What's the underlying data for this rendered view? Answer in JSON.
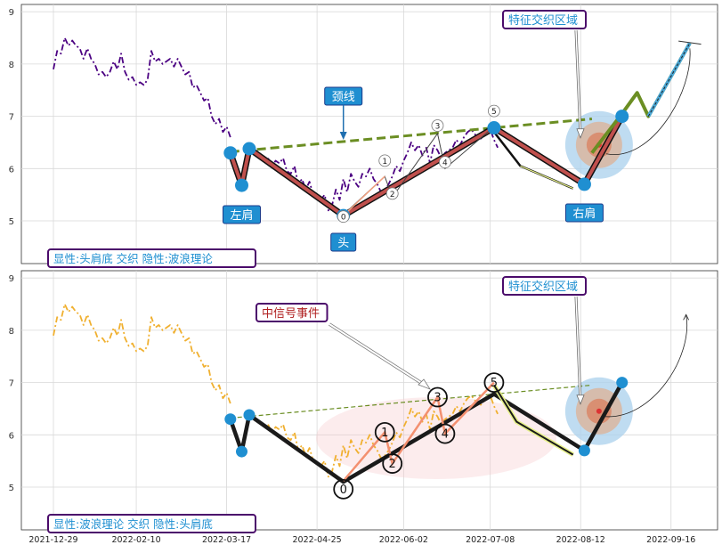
{
  "chart_data": [
    {
      "type": "line",
      "panel": "top",
      "yticks": [
        5,
        6,
        7,
        8,
        9
      ],
      "ylim": [
        4.2,
        9.15
      ],
      "series": [
        {
          "color": "#4b0082",
          "style": "dash-dot",
          "values": [
            [
              0,
              7.9
            ],
            [
              1,
              8.25
            ],
            [
              2,
              8.2
            ],
            [
              3,
              8.5
            ],
            [
              4,
              8.35
            ],
            [
              5,
              8.45
            ],
            [
              6,
              8.35
            ],
            [
              7,
              8.3
            ],
            [
              8,
              8.1
            ],
            [
              9,
              8.3
            ],
            [
              10,
              8.1
            ],
            [
              11,
              8.0
            ],
            [
              12,
              7.8
            ],
            [
              13,
              7.85
            ],
            [
              14,
              7.75
            ],
            [
              15,
              7.85
            ],
            [
              16,
              8.05
            ],
            [
              17,
              7.9
            ],
            [
              18,
              8.2
            ],
            [
              19,
              7.85
            ],
            [
              20,
              7.7
            ],
            [
              21,
              7.75
            ],
            [
              22,
              7.6
            ],
            [
              23,
              7.65
            ],
            [
              24,
              7.6
            ],
            [
              25,
              7.7
            ],
            [
              26,
              8.25
            ],
            [
              27,
              8.05
            ],
            [
              28,
              8.1
            ],
            [
              29,
              8.0
            ],
            [
              30,
              8.05
            ],
            [
              31,
              8.1
            ],
            [
              32,
              7.95
            ],
            [
              33,
              8.1
            ],
            [
              34,
              7.95
            ],
            [
              35,
              7.8
            ],
            [
              36,
              7.85
            ],
            [
              37,
              7.55
            ],
            [
              38,
              7.6
            ],
            [
              39,
              7.45
            ],
            [
              40,
              7.3
            ],
            [
              41,
              7.35
            ],
            [
              42,
              7.0
            ],
            [
              43,
              6.85
            ],
            [
              44,
              6.95
            ],
            [
              45,
              6.7
            ],
            [
              46,
              6.8
            ],
            [
              47,
              6.6
            ]
          ]
        },
        {
          "color": "#4b0082",
          "style": "dash-dot",
          "values": [
            [
              57,
              6.2
            ],
            [
              58,
              6.05
            ],
            [
              59,
              6.15
            ],
            [
              60,
              6.1
            ],
            [
              61,
              6.2
            ],
            [
              62,
              5.95
            ],
            [
              63,
              5.9
            ],
            [
              64,
              6.05
            ],
            [
              65,
              5.7
            ],
            [
              66,
              5.8
            ],
            [
              67,
              5.6
            ],
            [
              68,
              5.75
            ],
            [
              69,
              5.5
            ],
            [
              70,
              5.45
            ],
            [
              71,
              5.4
            ],
            [
              72,
              5.5
            ],
            [
              73,
              5.2
            ],
            [
              74,
              5.3
            ],
            [
              75,
              5.6
            ],
            [
              76,
              5.4
            ],
            [
              77,
              5.8
            ],
            [
              78,
              5.55
            ],
            [
              79,
              5.9
            ],
            [
              80,
              5.75
            ],
            [
              81,
              5.65
            ],
            [
              82,
              5.9
            ],
            [
              83,
              5.85
            ],
            [
              84,
              6.0
            ],
            [
              85,
              5.8
            ],
            [
              86,
              5.7
            ],
            [
              87,
              5.55
            ],
            [
              88,
              5.6
            ],
            [
              89,
              5.7
            ],
            [
              90,
              5.85
            ],
            [
              91,
              6.05
            ],
            [
              92,
              5.95
            ],
            [
              93,
              6.15
            ],
            [
              94,
              6.3
            ],
            [
              95,
              6.5
            ],
            [
              96,
              6.35
            ],
            [
              97,
              6.45
            ],
            [
              98,
              6.25
            ],
            [
              99,
              6.4
            ],
            [
              100,
              6.1
            ],
            [
              101,
              6.45
            ],
            [
              102,
              6.35
            ],
            [
              103,
              6.2
            ],
            [
              104,
              6.3
            ],
            [
              105,
              6.35
            ],
            [
              106,
              6.4
            ],
            [
              107,
              6.55
            ],
            [
              108,
              6.45
            ],
            [
              109,
              6.6
            ],
            [
              110,
              6.7
            ],
            [
              111,
              6.75
            ],
            [
              112,
              6.65
            ],
            [
              113,
              6.55
            ],
            [
              114,
              6.6
            ],
            [
              115,
              6.75
            ],
            [
              116,
              6.75
            ],
            [
              117,
              6.55
            ],
            [
              118,
              6.4
            ]
          ]
        }
      ],
      "head_shoulders_line": [
        [
          47,
          6.3
        ],
        [
          50,
          5.68
        ],
        [
          52,
          6.38
        ],
        [
          77,
          5.1
        ],
        [
          117,
          6.78
        ],
        [
          141,
          5.7
        ]
      ],
      "shoulder_head_points": [
        [
          47,
          6.3
        ],
        [
          50,
          5.68
        ],
        [
          52,
          6.38
        ],
        [
          77,
          5.1
        ],
        [
          117,
          6.78
        ],
        [
          141,
          5.7
        ],
        [
          151,
          7.0
        ]
      ],
      "wave_line": [
        [
          77,
          5.12
        ],
        [
          88,
          5.85
        ],
        [
          90,
          5.45
        ],
        [
          102,
          6.67
        ],
        [
          104,
          6.0
        ],
        [
          117,
          6.8
        ]
      ],
      "wave_labels": [
        [
          77,
          4.98,
          "0"
        ],
        [
          88,
          6.05,
          "1"
        ],
        [
          90,
          5.42,
          "2"
        ],
        [
          102,
          6.72,
          "3"
        ],
        [
          104,
          6.02,
          "4"
        ],
        [
          117,
          7.0,
          "5"
        ]
      ],
      "neckline": [
        [
          47,
          6.32
        ],
        [
          143,
          6.95
        ]
      ],
      "target_path": [
        [
          143,
          6.3
        ],
        [
          151,
          7.05
        ],
        [
          155,
          7.45
        ],
        [
          158,
          7.0
        ],
        [
          169,
          8.4
        ]
      ],
      "feature_zone_center": [
        143,
        6.35
      ],
      "labels": {
        "left_shoulder": "左肩",
        "head": "头",
        "right_shoulder": "右肩",
        "neckline": "颈线",
        "feature_zone": "特征交织区域",
        "caption": "显性:头肩底 交织 隐性:波浪理论"
      }
    },
    {
      "type": "line",
      "panel": "bottom",
      "yticks": [
        5,
        6,
        7,
        8,
        9
      ],
      "ylim": [
        4.2,
        9.15
      ],
      "xticks": [
        "2021-12-29",
        "2022-02-10",
        "2022-03-17",
        "2022-04-25",
        "2022-06-02",
        "2022-07-08",
        "2022-08-12",
        "2022-09-16"
      ],
      "xtick_positions": [
        0,
        22,
        46,
        70,
        93,
        116,
        140,
        164
      ],
      "series": [
        {
          "color": "#f0b030",
          "style": "dash-dot",
          "values": [
            [
              0,
              7.9
            ],
            [
              1,
              8.25
            ],
            [
              2,
              8.2
            ],
            [
              3,
              8.5
            ],
            [
              4,
              8.35
            ],
            [
              5,
              8.45
            ],
            [
              6,
              8.35
            ],
            [
              7,
              8.3
            ],
            [
              8,
              8.1
            ],
            [
              9,
              8.3
            ],
            [
              10,
              8.1
            ],
            [
              11,
              8.0
            ],
            [
              12,
              7.8
            ],
            [
              13,
              7.85
            ],
            [
              14,
              7.75
            ],
            [
              15,
              7.85
            ],
            [
              16,
              8.05
            ],
            [
              17,
              7.9
            ],
            [
              18,
              8.2
            ],
            [
              19,
              7.85
            ],
            [
              20,
              7.7
            ],
            [
              21,
              7.75
            ],
            [
              22,
              7.6
            ],
            [
              23,
              7.65
            ],
            [
              24,
              7.6
            ],
            [
              25,
              7.7
            ],
            [
              26,
              8.25
            ],
            [
              27,
              8.05
            ],
            [
              28,
              8.1
            ],
            [
              29,
              8.0
            ],
            [
              30,
              8.05
            ],
            [
              31,
              8.1
            ],
            [
              32,
              7.95
            ],
            [
              33,
              8.1
            ],
            [
              34,
              7.95
            ],
            [
              35,
              7.8
            ],
            [
              36,
              7.85
            ],
            [
              37,
              7.55
            ],
            [
              38,
              7.6
            ],
            [
              39,
              7.45
            ],
            [
              40,
              7.3
            ],
            [
              41,
              7.35
            ],
            [
              42,
              7.0
            ],
            [
              43,
              6.85
            ],
            [
              44,
              6.95
            ],
            [
              45,
              6.7
            ],
            [
              46,
              6.8
            ],
            [
              47,
              6.6
            ]
          ]
        },
        {
          "color": "#f0b030",
          "style": "dash-dot",
          "values": [
            [
              57,
              6.2
            ],
            [
              58,
              6.05
            ],
            [
              59,
              6.15
            ],
            [
              60,
              6.1
            ],
            [
              61,
              6.2
            ],
            [
              62,
              5.95
            ],
            [
              63,
              5.9
            ],
            [
              64,
              6.05
            ],
            [
              65,
              5.7
            ],
            [
              66,
              5.8
            ],
            [
              67,
              5.6
            ],
            [
              68,
              5.75
            ],
            [
              69,
              5.5
            ],
            [
              70,
              5.45
            ],
            [
              71,
              5.4
            ],
            [
              72,
              5.5
            ],
            [
              73,
              5.2
            ],
            [
              74,
              5.3
            ],
            [
              75,
              5.6
            ],
            [
              76,
              5.4
            ],
            [
              77,
              5.8
            ],
            [
              78,
              5.55
            ],
            [
              79,
              5.9
            ],
            [
              80,
              5.75
            ],
            [
              81,
              5.65
            ],
            [
              82,
              5.9
            ],
            [
              83,
              5.85
            ],
            [
              84,
              6.0
            ],
            [
              85,
              5.8
            ],
            [
              86,
              5.7
            ],
            [
              87,
              5.55
            ],
            [
              88,
              5.6
            ],
            [
              89,
              5.7
            ],
            [
              90,
              5.85
            ],
            [
              91,
              6.05
            ],
            [
              92,
              5.95
            ],
            [
              93,
              6.15
            ],
            [
              94,
              6.3
            ],
            [
              95,
              6.5
            ],
            [
              96,
              6.35
            ],
            [
              97,
              6.45
            ],
            [
              98,
              6.25
            ],
            [
              99,
              6.4
            ],
            [
              100,
              6.1
            ],
            [
              101,
              6.45
            ],
            [
              102,
              6.35
            ],
            [
              103,
              6.2
            ],
            [
              104,
              6.3
            ],
            [
              105,
              6.35
            ],
            [
              106,
              6.4
            ],
            [
              107,
              6.55
            ],
            [
              108,
              6.45
            ],
            [
              109,
              6.6
            ],
            [
              110,
              6.7
            ],
            [
              111,
              6.75
            ],
            [
              112,
              6.65
            ],
            [
              113,
              6.55
            ],
            [
              114,
              6.6
            ],
            [
              115,
              6.75
            ],
            [
              116,
              6.75
            ],
            [
              117,
              6.55
            ],
            [
              118,
              6.4
            ]
          ]
        }
      ],
      "head_shoulders_line": [
        [
          47,
          6.3
        ],
        [
          50,
          5.68
        ],
        [
          52,
          6.38
        ],
        [
          77,
          5.1
        ],
        [
          117,
          6.78
        ],
        [
          141,
          5.7
        ],
        [
          151,
          7.0
        ]
      ],
      "shoulder_head_points": [
        [
          47,
          6.3
        ],
        [
          50,
          5.68
        ],
        [
          52,
          6.38
        ],
        [
          141,
          5.7
        ],
        [
          151,
          7.0
        ]
      ],
      "wave_line": [
        [
          77,
          5.12
        ],
        [
          88,
          6.05
        ],
        [
          90,
          5.45
        ],
        [
          102,
          6.72
        ],
        [
          104,
          6.02
        ],
        [
          117,
          7.0
        ]
      ],
      "wave_labels": [
        [
          77,
          4.96,
          "0"
        ],
        [
          88,
          6.05,
          "1"
        ],
        [
          90,
          5.45,
          "2"
        ],
        [
          102,
          6.72,
          "3"
        ],
        [
          104,
          6.02,
          "4"
        ],
        [
          117,
          7.0,
          "5"
        ]
      ],
      "neckline": [
        [
          47,
          6.32
        ],
        [
          143,
          6.95
        ]
      ],
      "feature_zone_center": [
        143,
        6.35
      ],
      "labels": {
        "signal_event": "中信号事件",
        "feature_zone": "特征交织区域",
        "caption": "显性:波浪理论 交织 隐性:头肩底"
      }
    }
  ]
}
